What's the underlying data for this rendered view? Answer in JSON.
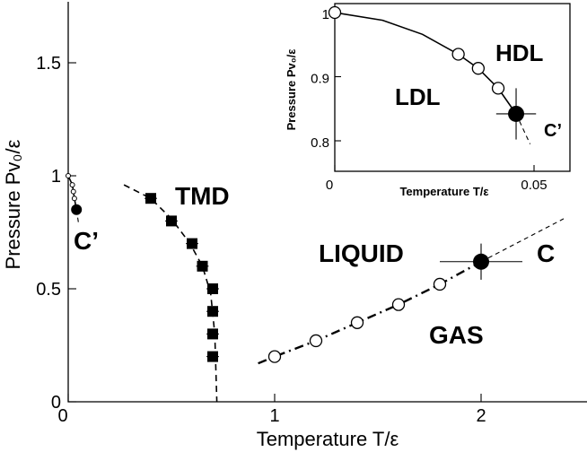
{
  "chart_data": [
    {
      "type": "scatter",
      "xlabel": "Temperature T/ε",
      "ylabel": "Pressure Pv₀/ε",
      "xlim": [
        0,
        2.45
      ],
      "ylim": [
        0,
        1.75
      ],
      "x_ticks": [
        {
          "value": 0,
          "label": "0"
        },
        {
          "value": 1,
          "label": "1"
        },
        {
          "value": 2,
          "label": "2"
        }
      ],
      "y_ticks": [
        {
          "value": 0,
          "label": "0"
        },
        {
          "value": 0.5,
          "label": "0.5"
        },
        {
          "value": 1,
          "label": "1"
        },
        {
          "value": 1.5,
          "label": "1.5"
        }
      ],
      "grid": false,
      "region_labels": {
        "tmd": "TMD",
        "liquid": "LIQUID",
        "gas": "GAS",
        "critical": "C",
        "second_critical": "C’"
      },
      "series": [
        {
          "marker": "filled-square",
          "line": "dashed",
          "points": [
            {
              "x": 0.4,
              "y": 0.9,
              "xerr": 0.03
            },
            {
              "x": 0.5,
              "y": 0.8,
              "xerr": 0.03
            },
            {
              "x": 0.6,
              "y": 0.7,
              "xerr": 0.03
            },
            {
              "x": 0.65,
              "y": 0.6,
              "xerr": 0.03
            },
            {
              "x": 0.7,
              "y": 0.5,
              "xerr": 0.03
            },
            {
              "x": 0.7,
              "y": 0.4,
              "xerr": 0.03
            },
            {
              "x": 0.7,
              "y": 0.3,
              "xerr": 0.03
            },
            {
              "x": 0.7,
              "y": 0.2,
              "xerr": 0.03
            }
          ],
          "curve": [
            [
              0.27,
              0.96
            ],
            [
              0.4,
              0.9
            ],
            [
              0.5,
              0.81
            ],
            [
              0.59,
              0.7
            ],
            [
              0.65,
              0.6
            ],
            [
              0.69,
              0.48
            ],
            [
              0.71,
              0.3
            ],
            [
              0.72,
              0.0
            ]
          ]
        },
        {
          "marker": "open-circle",
          "line": "dash-dot",
          "points": [
            {
              "x": 1.0,
              "y": 0.2
            },
            {
              "x": 1.2,
              "y": 0.27
            },
            {
              "x": 1.4,
              "y": 0.35
            },
            {
              "x": 1.6,
              "y": 0.43
            },
            {
              "x": 1.8,
              "y": 0.52
            }
          ],
          "curve": [
            [
              0.92,
              0.17
            ],
            [
              1.0,
              0.2
            ],
            [
              1.2,
              0.27
            ],
            [
              1.4,
              0.35
            ],
            [
              1.6,
              0.43
            ],
            [
              1.8,
              0.52
            ],
            [
              2.0,
              0.62
            ]
          ]
        },
        {
          "marker": "filled-circle-large",
          "points": [
            {
              "x": 2.0,
              "y": 0.62,
              "xerr": 0.2,
              "yerr": 0.08
            }
          ],
          "extension_dashed": [
            [
              2.0,
              0.62
            ],
            [
              2.4,
              0.81
            ]
          ]
        },
        {
          "marker": "open-circle-small",
          "points": [
            {
              "x": 0.0,
              "y": 1.0
            },
            {
              "x": 0.02,
              "y": 0.96
            },
            {
              "x": 0.025,
              "y": 0.93
            },
            {
              "x": 0.03,
              "y": 0.9
            }
          ],
          "curve": [
            [
              0.0,
              1.0
            ],
            [
              0.02,
              0.96
            ],
            [
              0.025,
              0.93
            ],
            [
              0.03,
              0.9
            ],
            [
              0.04,
              0.85
            ]
          ]
        },
        {
          "marker": "filled-circle",
          "points": [
            {
              "x": 0.04,
              "y": 0.85
            }
          ],
          "extension_dashed": [
            [
              0.04,
              0.85
            ],
            [
              0.05,
              0.79
            ]
          ]
        }
      ]
    },
    {
      "type": "scatter",
      "inset": true,
      "xlabel": "Temperature T/ε",
      "ylabel": "Pressure Pv₀/ε",
      "xlim": [
        0,
        0.06
      ],
      "ylim": [
        0.75,
        1.0
      ],
      "x_ticks": [
        {
          "value": 0,
          "label": "0"
        },
        {
          "value": 0.05,
          "label": "0.05"
        }
      ],
      "y_ticks": [
        {
          "value": 0.8,
          "label": "0.8"
        },
        {
          "value": 0.9,
          "label": "0.9"
        },
        {
          "value": 1.0,
          "label": "1"
        }
      ],
      "region_labels": {
        "hdl": "HDL",
        "ldl": "LDL",
        "critical": "C’"
      },
      "series": [
        {
          "marker": "open-circle",
          "line": "solid",
          "points": [
            {
              "x": 0.0,
              "y": 1.0
            },
            {
              "x": 0.031,
              "y": 0.935
            },
            {
              "x": 0.036,
              "y": 0.913
            },
            {
              "x": 0.041,
              "y": 0.882
            }
          ],
          "curve": [
            [
              0.0,
              1.0
            ],
            [
              0.012,
              0.988
            ],
            [
              0.022,
              0.966
            ],
            [
              0.031,
              0.935
            ],
            [
              0.036,
              0.913
            ],
            [
              0.041,
              0.882
            ],
            [
              0.0455,
              0.842
            ]
          ]
        },
        {
          "marker": "filled-circle-large",
          "points": [
            {
              "x": 0.0455,
              "y": 0.842,
              "xerr": 0.005,
              "yerr": 0.04
            }
          ],
          "extension_dashed": [
            [
              0.0455,
              0.842
            ],
            [
              0.049,
              0.795
            ]
          ]
        }
      ]
    }
  ]
}
